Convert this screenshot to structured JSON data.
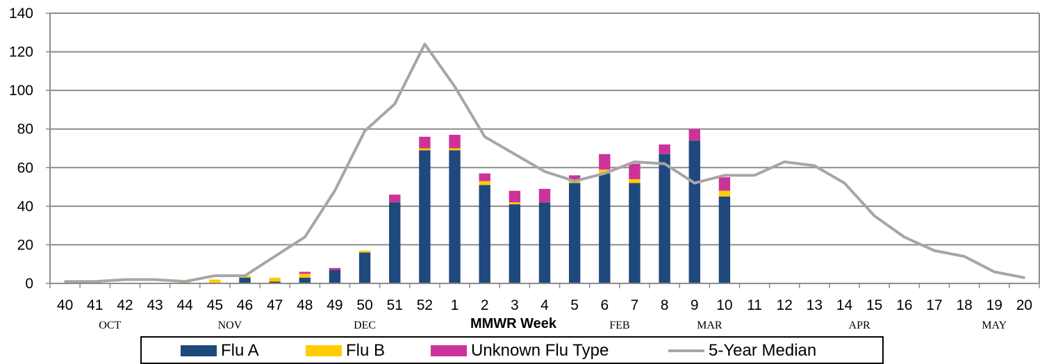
{
  "chart_data": {
    "type": "bar",
    "stacked": true,
    "categories": [
      "40",
      "41",
      "42",
      "43",
      "44",
      "45",
      "46",
      "47",
      "48",
      "49",
      "50",
      "51",
      "52",
      "1",
      "2",
      "3",
      "4",
      "5",
      "6",
      "7",
      "8",
      "9",
      "10",
      "11",
      "12",
      "13",
      "14",
      "15",
      "16",
      "17",
      "18",
      "19",
      "20"
    ],
    "months": [
      "OCT",
      "NOV",
      "DEC",
      "FEB",
      "MAR",
      "APR",
      "MAY"
    ],
    "xlabel": "MMWR Week",
    "ylabel": "",
    "ylim": [
      0,
      140
    ],
    "yticks": [
      "0",
      "20",
      "40",
      "60",
      "80",
      "100",
      "120",
      "140"
    ],
    "grid": true,
    "legend_position": "bottom",
    "series": [
      {
        "name": "Flu A",
        "color": "#1f497d",
        "values": [
          0,
          0,
          0,
          0,
          0,
          0,
          3,
          1,
          3,
          7,
          16,
          42,
          69,
          69,
          51,
          41,
          42,
          52,
          57,
          52,
          67,
          74,
          45,
          null,
          null,
          null,
          null,
          null,
          null,
          null,
          null,
          null,
          null
        ]
      },
      {
        "name": "Flu B",
        "color": "#ffcc00",
        "values": [
          0,
          0,
          0,
          0,
          1,
          2,
          1,
          2,
          2,
          0,
          1,
          0,
          1,
          1,
          2,
          1,
          0,
          1,
          2,
          2,
          0,
          0,
          3,
          null,
          null,
          null,
          null,
          null,
          null,
          null,
          null,
          null,
          null
        ]
      },
      {
        "name": "Unknown Flu Type",
        "color": "#cc3399",
        "values": [
          0,
          1,
          0,
          0,
          0,
          0,
          0,
          0,
          1,
          1,
          0,
          4,
          6,
          7,
          4,
          6,
          7,
          3,
          8,
          8,
          5,
          6,
          7,
          null,
          null,
          null,
          null,
          null,
          null,
          null,
          null,
          null,
          null
        ]
      }
    ],
    "line_series": {
      "name": "5-Year Median",
      "color": "#a6a6a6",
      "values": [
        1,
        1,
        2,
        2,
        1,
        4,
        4,
        14,
        24,
        48,
        79,
        93,
        124,
        102,
        76,
        67,
        58,
        53,
        57,
        63,
        62,
        52,
        56,
        56,
        63,
        61,
        52,
        35,
        24,
        17,
        14,
        6,
        3
      ]
    }
  }
}
